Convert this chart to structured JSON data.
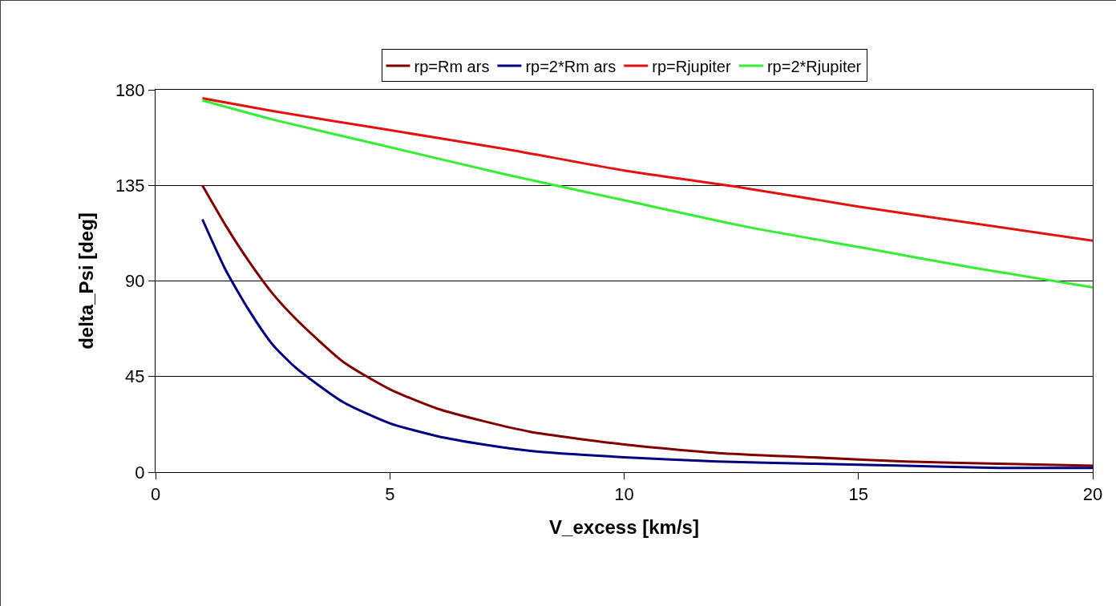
{
  "chart_data": {
    "type": "line",
    "xlabel": "V_excess [km/s]",
    "ylabel": "delta_Psi [deg]",
    "xlim": [
      0,
      20
    ],
    "xticks": [
      0,
      5,
      10,
      15,
      20
    ],
    "ylim": [
      0,
      180
    ],
    "yticks": [
      0,
      45,
      90,
      135,
      180
    ],
    "grid": "y",
    "legend": "top",
    "marker": "none",
    "line_style": "solid",
    "series": [
      {
        "name": "rp=Rm ars",
        "color": "#800000",
        "x": [
          1,
          1.5,
          2,
          2.5,
          3,
          4,
          5,
          6,
          7,
          8,
          10,
          12,
          14,
          16,
          18,
          20
        ],
        "values": [
          135,
          116,
          99,
          84,
          72,
          52,
          39,
          30,
          24,
          19,
          13,
          9,
          7,
          5,
          4,
          3
        ]
      },
      {
        "name": "rp=2*Rm ars",
        "color": "#000080",
        "x": [
          1,
          1.5,
          2,
          2.5,
          3,
          4,
          5,
          6,
          7,
          8,
          10,
          12,
          14,
          16,
          18,
          20
        ],
        "values": [
          119,
          95,
          76,
          60,
          49,
          33,
          23,
          17,
          13,
          10,
          7,
          5,
          4,
          3,
          2,
          2
        ]
      },
      {
        "name": "rp=Rjupiter",
        "color": "#e31212",
        "x": [
          1,
          2.5,
          5,
          7.5,
          10,
          12.5,
          15,
          17.5,
          20
        ],
        "values": [
          176,
          170,
          161,
          152,
          142,
          134,
          125,
          117,
          109
        ]
      },
      {
        "name": "rp=2*Rjupiter",
        "color": "#33ee33",
        "x": [
          1,
          2.5,
          5,
          7.5,
          10,
          12.5,
          15,
          17.5,
          20
        ],
        "values": [
          175,
          166,
          153,
          140,
          128,
          116,
          106,
          96,
          87
        ]
      }
    ]
  }
}
